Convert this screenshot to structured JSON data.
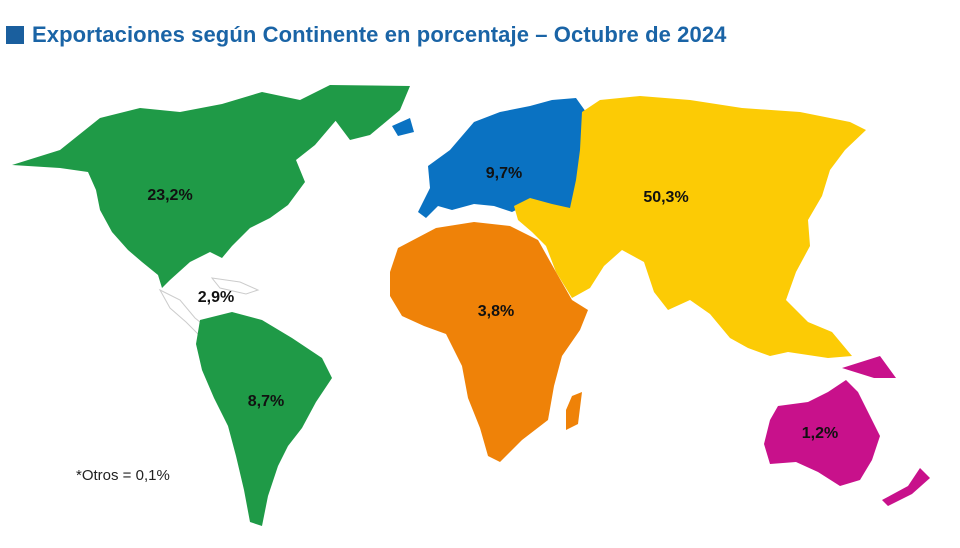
{
  "title": "Exportaciones según Continente en porcentaje – Octubre de 2024",
  "colors": {
    "title": "#1a64a6",
    "north_america": "#1f9a47",
    "central_america": "#ffffff",
    "south_america": "#1f9a47",
    "europe": "#0a72c2",
    "africa": "#ef8208",
    "asia": "#fccb05",
    "oceania": "#c8118b"
  },
  "regions": {
    "north_america": {
      "name": "América del Norte",
      "value": "23,2%"
    },
    "central_america": {
      "name": "América Central y Caribe",
      "value": "2,9%"
    },
    "south_america": {
      "name": "América del Sur",
      "value": "8,7%"
    },
    "europe": {
      "name": "Europa",
      "value": "9,7%"
    },
    "africa": {
      "name": "África",
      "value": "3,8%"
    },
    "asia": {
      "name": "Asia",
      "value": "50,3%"
    },
    "oceania": {
      "name": "Oceanía",
      "value": "1,2%"
    }
  },
  "note": "*Otros = 0,1%"
}
